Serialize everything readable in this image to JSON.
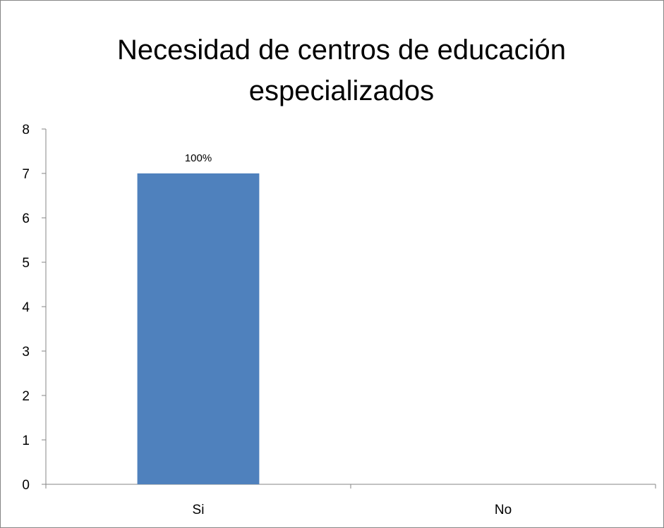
{
  "chart_data": {
    "type": "bar",
    "title_lines": [
      "Necesidad de centros de educación",
      "especializados"
    ],
    "categories": [
      "Si",
      "No"
    ],
    "series": [
      {
        "values": [
          7,
          0
        ],
        "data_labels": [
          "100%",
          ""
        ]
      }
    ],
    "y_ticks": [
      0,
      1,
      2,
      3,
      4,
      5,
      6,
      7,
      8
    ],
    "ylim": [
      0,
      8
    ],
    "grid": false,
    "legend": "none",
    "colors": {
      "bar": "#4F81BD",
      "axis": "#868686",
      "frame": "#868686"
    }
  }
}
